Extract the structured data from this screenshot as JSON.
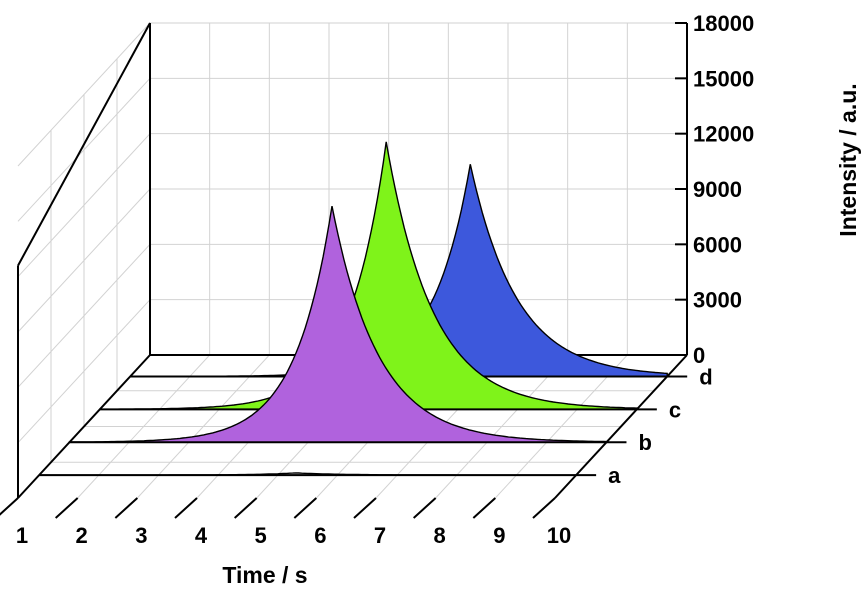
{
  "chart_data": {
    "type": "area",
    "projection": "3d-waterfall",
    "xlabel": "Time / s",
    "zlabel": "Intensity / a.u.",
    "x_ticks": [
      "1",
      "2",
      "3",
      "4",
      "5",
      "6",
      "7",
      "8",
      "9",
      "10"
    ],
    "xlim": [
      1,
      10
    ],
    "z_ticks": [
      "0",
      "3000",
      "6000",
      "9000",
      "12000",
      "15000",
      "18000"
    ],
    "zlim": [
      0,
      18000
    ],
    "grid": true,
    "series": [
      {
        "name": "a",
        "peak_time": 5.3,
        "peak_intensity": 120,
        "color": "#000000"
      },
      {
        "name": "b",
        "peak_time": 5.4,
        "peak_intensity": 12800,
        "color": "#b062dd"
      },
      {
        "name": "c",
        "peak_time": 5.8,
        "peak_intensity": 14500,
        "color": "#7ff31a"
      },
      {
        "name": "d",
        "peak_time": 6.7,
        "peak_intensity": 11500,
        "color": "#3d58dc"
      }
    ]
  }
}
